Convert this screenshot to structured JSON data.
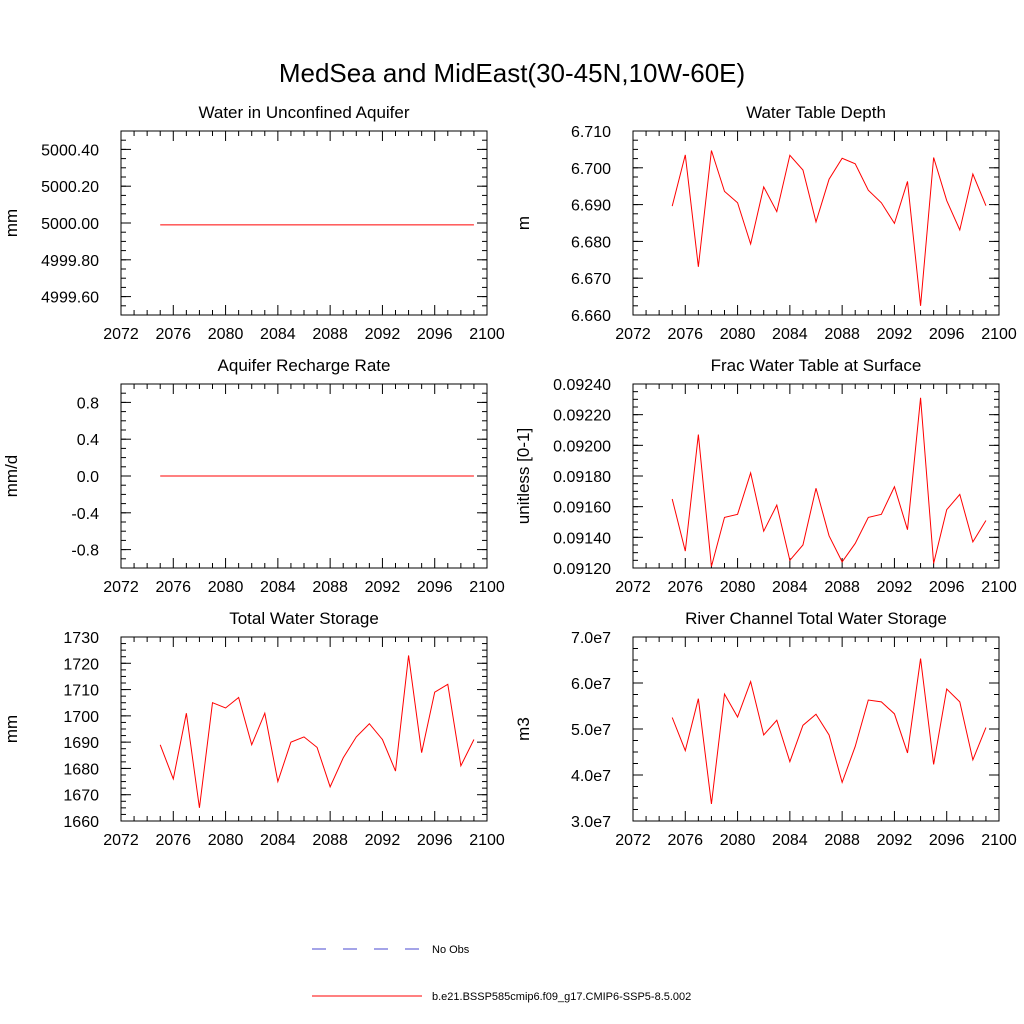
{
  "figure_title": "MedSea and MidEast(30-45N,10W-60E)",
  "colors": {
    "model_line": "#ff0000",
    "obs_line": "#4a4ad0",
    "axes": "#000000"
  },
  "legend": {
    "obs_label": "No Obs",
    "model_label": "b.e21.BSSP585cmip6.f09_g17.CMIP6-SSP5-8.5.002"
  },
  "chart_data": [
    {
      "type": "line",
      "title": "Water in Unconfined Aquifer",
      "xlabel": "",
      "ylabel": "mm",
      "xlim": [
        2072,
        2100
      ],
      "ylim": [
        4999.5,
        5000.5
      ],
      "xticks": [
        2072,
        2076,
        2080,
        2084,
        2088,
        2092,
        2096,
        2100
      ],
      "yticks": [
        4999.6,
        4999.8,
        5000.0,
        5000.2,
        5000.4
      ],
      "ytick_labels": [
        "4999.60",
        "4999.80",
        "5000.00",
        "5000.20",
        "5000.40"
      ],
      "x": [
        2075,
        2076,
        2077,
        2078,
        2079,
        2080,
        2081,
        2082,
        2083,
        2084,
        2085,
        2086,
        2087,
        2088,
        2089,
        2090,
        2091,
        2092,
        2093,
        2094,
        2095,
        2096,
        2097,
        2098,
        2099
      ],
      "series": [
        {
          "name": "b.e21.BSSP585cmip6.f09_g17.CMIP6-SSP5-8.5.002",
          "values": [
            4999.99,
            4999.99,
            4999.99,
            4999.99,
            4999.99,
            4999.99,
            4999.99,
            4999.99,
            4999.99,
            4999.99,
            4999.99,
            4999.99,
            4999.99,
            4999.99,
            4999.99,
            4999.99,
            4999.99,
            4999.99,
            4999.99,
            4999.99,
            4999.99,
            4999.99,
            4999.99,
            4999.99,
            4999.99
          ]
        }
      ]
    },
    {
      "type": "line",
      "title": "Water Table Depth",
      "xlabel": "",
      "ylabel": "m",
      "xlim": [
        2072,
        2100
      ],
      "ylim": [
        6.66,
        6.71
      ],
      "xticks": [
        2072,
        2076,
        2080,
        2084,
        2088,
        2092,
        2096,
        2100
      ],
      "yticks": [
        6.66,
        6.67,
        6.68,
        6.69,
        6.7,
        6.71
      ],
      "ytick_labels": [
        "6.660",
        "6.670",
        "6.680",
        "6.690",
        "6.700",
        "6.710"
      ],
      "x": [
        2075,
        2076,
        2077,
        2078,
        2079,
        2080,
        2081,
        2082,
        2083,
        2084,
        2085,
        2086,
        2087,
        2088,
        2089,
        2090,
        2091,
        2092,
        2093,
        2094,
        2095,
        2096,
        2097,
        2098,
        2099
      ],
      "series": [
        {
          "name": "b.e21.BSSP585cmip6.f09_g17.CMIP6-SSP5-8.5.002",
          "values": [
            6.6896,
            6.7035,
            6.6731,
            6.7047,
            6.6936,
            6.6905,
            6.6793,
            6.6948,
            6.6881,
            6.7034,
            6.6994,
            6.6853,
            6.6969,
            6.7026,
            6.7011,
            6.6939,
            6.6905,
            6.6849,
            6.6963,
            6.6625,
            6.7028,
            6.6911,
            6.6831,
            6.6983,
            6.6897
          ]
        }
      ]
    },
    {
      "type": "line",
      "title": "Aquifer Recharge Rate",
      "xlabel": "",
      "ylabel": "mm/d",
      "xlim": [
        2072,
        2100
      ],
      "ylim": [
        -1.0,
        1.0
      ],
      "xticks": [
        2072,
        2076,
        2080,
        2084,
        2088,
        2092,
        2096,
        2100
      ],
      "yticks": [
        -0.8,
        -0.4,
        0.0,
        0.4,
        0.8
      ],
      "ytick_labels": [
        "-0.8",
        "-0.4",
        "0.0",
        "0.4",
        "0.8"
      ],
      "x": [
        2075,
        2076,
        2077,
        2078,
        2079,
        2080,
        2081,
        2082,
        2083,
        2084,
        2085,
        2086,
        2087,
        2088,
        2089,
        2090,
        2091,
        2092,
        2093,
        2094,
        2095,
        2096,
        2097,
        2098,
        2099
      ],
      "series": [
        {
          "name": "b.e21.BSSP585cmip6.f09_g17.CMIP6-SSP5-8.5.002",
          "values": [
            0,
            0,
            0,
            0,
            0,
            0,
            0,
            0,
            0,
            0,
            0,
            0,
            0,
            0,
            0,
            0,
            0,
            0,
            0,
            0,
            0,
            0,
            0,
            0,
            0
          ]
        }
      ]
    },
    {
      "type": "line",
      "title": "Frac Water Table at Surface",
      "xlabel": "",
      "ylabel": "unitless [0-1]",
      "xlim": [
        2072,
        2100
      ],
      "ylim": [
        0.0912,
        0.0924
      ],
      "xticks": [
        2072,
        2076,
        2080,
        2084,
        2088,
        2092,
        2096,
        2100
      ],
      "yticks": [
        0.0912,
        0.0914,
        0.0916,
        0.0918,
        0.092,
        0.0922,
        0.0924
      ],
      "ytick_labels": [
        "0.09120",
        "0.09140",
        "0.09160",
        "0.09180",
        "0.09200",
        "0.09220",
        "0.09240"
      ],
      "x": [
        2075,
        2076,
        2077,
        2078,
        2079,
        2080,
        2081,
        2082,
        2083,
        2084,
        2085,
        2086,
        2087,
        2088,
        2089,
        2090,
        2091,
        2092,
        2093,
        2094,
        2095,
        2096,
        2097,
        2098,
        2099
      ],
      "series": [
        {
          "name": "b.e21.BSSP585cmip6.f09_g17.CMIP6-SSP5-8.5.002",
          "values": [
            0.09165,
            0.09131,
            0.09207,
            0.09121,
            0.09153,
            0.09155,
            0.09182,
            0.09144,
            0.09161,
            0.09125,
            0.09135,
            0.09172,
            0.09141,
            0.09124,
            0.09136,
            0.09153,
            0.09155,
            0.09173,
            0.09145,
            0.09231,
            0.09123,
            0.09158,
            0.09168,
            0.09137,
            0.09151
          ]
        }
      ]
    },
    {
      "type": "line",
      "title": "Total Water Storage",
      "xlabel": "",
      "ylabel": "mm",
      "xlim": [
        2072,
        2100
      ],
      "ylim": [
        1660,
        1730
      ],
      "xticks": [
        2072,
        2076,
        2080,
        2084,
        2088,
        2092,
        2096,
        2100
      ],
      "yticks": [
        1660,
        1670,
        1680,
        1690,
        1700,
        1710,
        1720,
        1730
      ],
      "ytick_labels": [
        "1660",
        "1670",
        "1680",
        "1690",
        "1700",
        "1710",
        "1720",
        "1730"
      ],
      "x": [
        2075,
        2076,
        2077,
        2078,
        2079,
        2080,
        2081,
        2082,
        2083,
        2084,
        2085,
        2086,
        2087,
        2088,
        2089,
        2090,
        2091,
        2092,
        2093,
        2094,
        2095,
        2096,
        2097,
        2098,
        2099
      ],
      "series": [
        {
          "name": "b.e21.BSSP585cmip6.f09_g17.CMIP6-SSP5-8.5.002",
          "values": [
            1689,
            1676,
            1701,
            1665,
            1705,
            1703,
            1707,
            1689,
            1701,
            1675,
            1690,
            1692,
            1688,
            1673,
            1684,
            1692,
            1697,
            1691,
            1679,
            1723,
            1686,
            1709,
            1712,
            1681,
            1691
          ]
        }
      ]
    },
    {
      "type": "line",
      "title": "River Channel Total Water Storage",
      "xlabel": "",
      "ylabel": "m3",
      "xlim": [
        2072,
        2100
      ],
      "ylim": [
        30000000,
        70000000
      ],
      "xticks": [
        2072,
        2076,
        2080,
        2084,
        2088,
        2092,
        2096,
        2100
      ],
      "yticks": [
        30000000,
        40000000,
        50000000,
        60000000,
        70000000
      ],
      "ytick_labels": [
        "3.0e7",
        "4.0e7",
        "5.0e7",
        "6.0e7",
        "7.0e7"
      ],
      "x": [
        2075,
        2076,
        2077,
        2078,
        2079,
        2080,
        2081,
        2082,
        2083,
        2084,
        2085,
        2086,
        2087,
        2088,
        2089,
        2090,
        2091,
        2092,
        2093,
        2094,
        2095,
        2096,
        2097,
        2098,
        2099
      ],
      "series": [
        {
          "name": "b.e21.BSSP585cmip6.f09_g17.CMIP6-SSP5-8.5.002",
          "values": [
            52500000,
            45300000,
            56600000,
            33700000,
            57600000,
            52600000,
            60300000,
            48700000,
            51900000,
            42900000,
            50800000,
            53200000,
            48700000,
            38400000,
            46200000,
            56300000,
            55900000,
            53300000,
            44800000,
            65300000,
            42300000,
            58700000,
            55900000,
            43300000,
            50300000
          ]
        }
      ]
    }
  ]
}
